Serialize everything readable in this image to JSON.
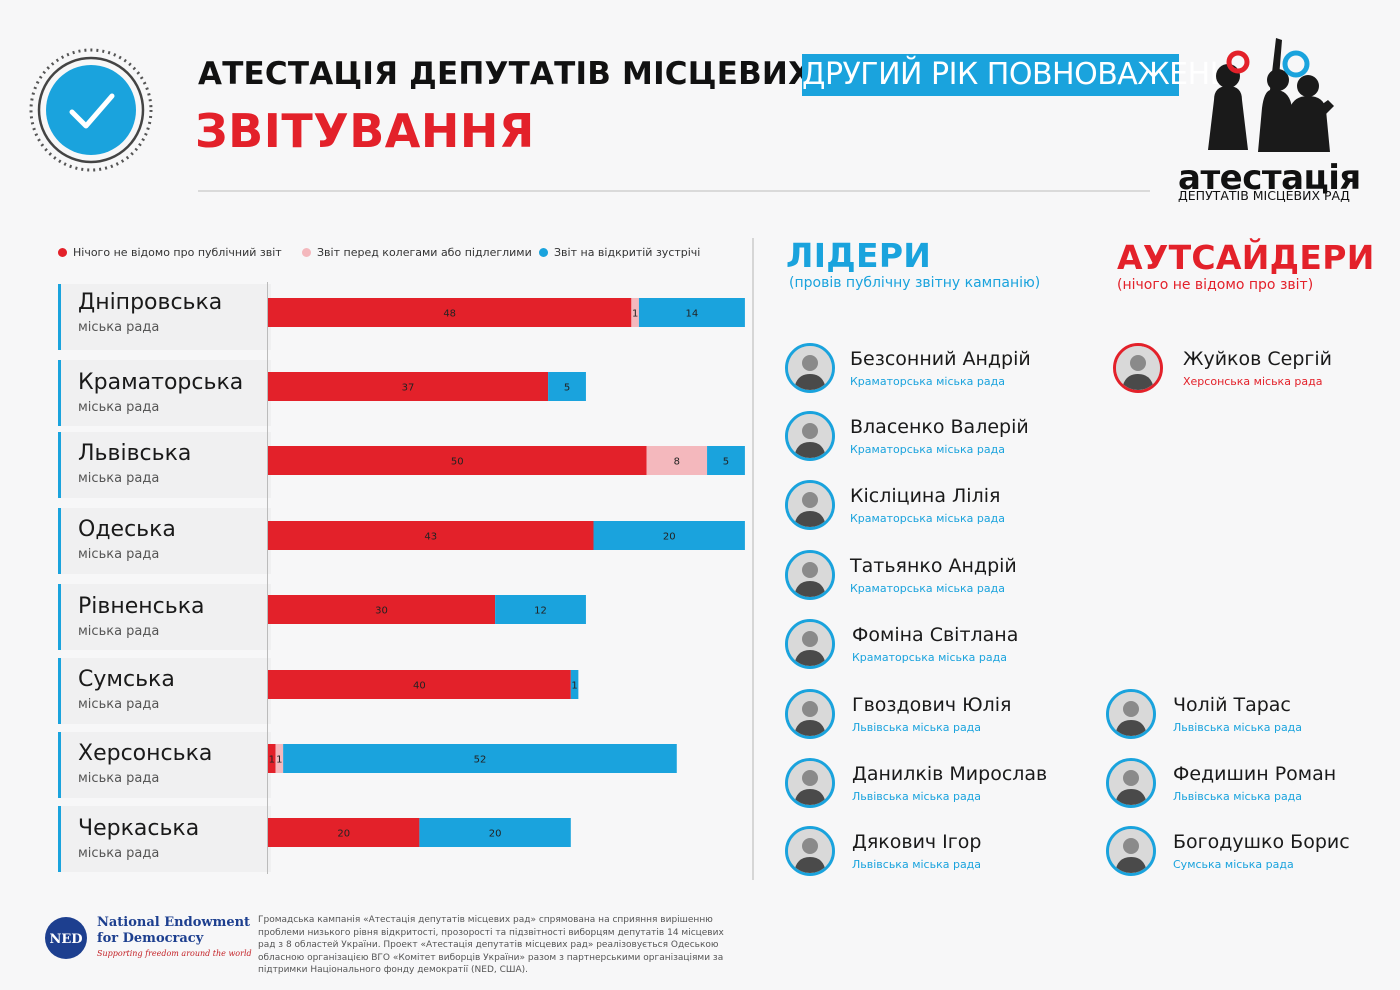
{
  "header": {
    "title_main": "АТЕСТАЦІЯ ДЕПУТАТІВ МІСЦЕВИХ РАД.",
    "title_tag": "ДРУГИЙ РІК ПОВНОВАЖЕНЬ",
    "title_sub": "ЗВІТУВАННЯ",
    "logo_word": "атестація",
    "logo_sub": "ДЕПУТАТІВ МІСЦЕВИХ РАД"
  },
  "colors": {
    "red": "#e3212a",
    "pink": "#f4b8bd",
    "blue": "#1aa3dd"
  },
  "legend": [
    {
      "label": "Нічого не відомо про публічний звіт",
      "color": "#e3212a"
    },
    {
      "label": "Звіт перед колегами або підлеглими",
      "color": "#f4b8bd"
    },
    {
      "label": "Звіт на відкритій зустрічі",
      "color": "#1aa3dd"
    }
  ],
  "chart_data": {
    "type": "bar",
    "orientation": "horizontal",
    "stacked": true,
    "categories": [
      "Дніпровська",
      "Краматорська",
      "Львівська",
      "Одеська",
      "Рівненська",
      "Сумська",
      "Херсонська",
      "Черкаська"
    ],
    "category_sublabel": "міська рада",
    "series": [
      {
        "name": "Нічого не відомо про публічний звіт",
        "color": "#e3212a",
        "values": [
          48,
          37,
          50,
          43,
          30,
          40,
          1,
          20
        ]
      },
      {
        "name": "Звіт перед колегами або підлеглими",
        "color": "#f4b8bd",
        "values": [
          1,
          0,
          8,
          0,
          0,
          0,
          1,
          0
        ]
      },
      {
        "name": "Звіт на відкритій зустрічі",
        "color": "#1aa3dd",
        "values": [
          14,
          5,
          5,
          20,
          12,
          1,
          52,
          20
        ]
      }
    ]
  },
  "leaders": {
    "title": "ЛІДЕРИ",
    "subtitle": "(провів публічну звітну кампанію)",
    "people": [
      {
        "name": "Безсонний Андрій",
        "council": "Краматорська міська рада"
      },
      {
        "name": "Власенко Валерій",
        "council": "Краматорська міська рада"
      },
      {
        "name": "Кісліцина Лілія",
        "council": "Краматорська міська рада"
      },
      {
        "name": "Татьянко Андрій",
        "council": "Краматорська міська рада"
      },
      {
        "name": "Фоміна Світлана",
        "council": "Краматорська міська рада"
      },
      {
        "name": "Гвоздович Юлія",
        "council": "Львівська міська рада"
      },
      {
        "name": "Данилків Мирослав",
        "council": "Львівська міська рада"
      },
      {
        "name": "Дякович Ігор",
        "council": "Львівська міська рада"
      }
    ],
    "extra_people": [
      {
        "name": "Чолій Тарас",
        "council": "Львівська міська рада"
      },
      {
        "name": "Федишин Роман",
        "council": "Львівська міська рада"
      },
      {
        "name": "Богодушко Борис",
        "council": "Сумська міська рада"
      }
    ]
  },
  "outsiders": {
    "title": "АУТСАЙДЕРИ",
    "subtitle": "(нічого не відомо про звіт)",
    "people": [
      {
        "name": "Жуйков Сергій",
        "council": "Херсонська міська рада"
      }
    ]
  },
  "footer": {
    "ned_name_1": "National Endowment",
    "ned_name_2": "for Democracy",
    "ned_tagline": "Supporting freedom around the world",
    "ned_abbr": "NED",
    "note": "Громадська кампанія «Атестація депутатів місцевих рад» спрямована на сприяння вирішенню проблеми низького рівня відкритості, прозорості та підзвітності виборцям депутатів 14 місцевих рад з 8 областей України. Проект «Атестація депутатів місцевих рад» реалізовується Одеською обласною організацією ВГО «Комітет виборців України» разом з партнерськими організаціями за підтримки Національного фонду демократії (NED, США)."
  }
}
